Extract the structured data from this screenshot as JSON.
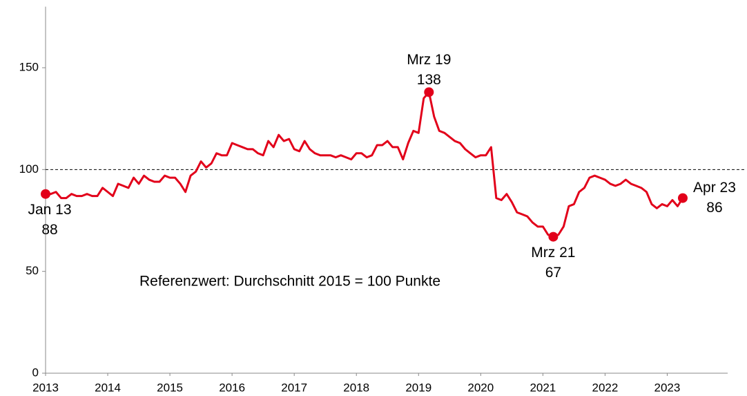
{
  "chart_data": {
    "type": "line",
    "note": "Referenzwert: Durchschnitt 2015 = 100 Punkte",
    "x": [
      2013,
      2013.083,
      2013.167,
      2013.25,
      2013.333,
      2013.417,
      2013.5,
      2013.583,
      2013.667,
      2013.75,
      2013.833,
      2013.917,
      2014,
      2014.083,
      2014.167,
      2014.25,
      2014.333,
      2014.417,
      2014.5,
      2014.583,
      2014.667,
      2014.75,
      2014.833,
      2014.917,
      2015,
      2015.083,
      2015.167,
      2015.25,
      2015.333,
      2015.417,
      2015.5,
      2015.583,
      2015.667,
      2015.75,
      2015.833,
      2015.917,
      2016,
      2016.083,
      2016.167,
      2016.25,
      2016.333,
      2016.417,
      2016.5,
      2016.583,
      2016.667,
      2016.75,
      2016.833,
      2016.917,
      2017,
      2017.083,
      2017.167,
      2017.25,
      2017.333,
      2017.417,
      2017.5,
      2017.583,
      2017.667,
      2017.75,
      2017.833,
      2017.917,
      2018,
      2018.083,
      2018.167,
      2018.25,
      2018.333,
      2018.417,
      2018.5,
      2018.583,
      2018.667,
      2018.75,
      2018.833,
      2018.917,
      2019,
      2019.083,
      2019.167,
      2019.25,
      2019.333,
      2019.417,
      2019.5,
      2019.583,
      2019.667,
      2019.75,
      2019.833,
      2019.917,
      2020,
      2020.083,
      2020.167,
      2020.25,
      2020.333,
      2020.417,
      2020.5,
      2020.583,
      2020.667,
      2020.75,
      2020.833,
      2020.917,
      2021,
      2021.083,
      2021.167,
      2021.25,
      2021.333,
      2021.417,
      2021.5,
      2021.583,
      2021.667,
      2021.75,
      2021.833,
      2021.917,
      2022,
      2022.083,
      2022.167,
      2022.25,
      2022.333,
      2022.417,
      2022.5,
      2022.583,
      2022.667,
      2022.75,
      2022.833,
      2022.917,
      2023,
      2023.083,
      2023.167,
      2023.25
    ],
    "series": [
      {
        "color": "#e2001a",
        "values": [
          88,
          88,
          89,
          86,
          86,
          88,
          87,
          87,
          88,
          87,
          87,
          91,
          89,
          87,
          93,
          92,
          91,
          96,
          93,
          97,
          95,
          94,
          94,
          97,
          96,
          96,
          93,
          89,
          97,
          99,
          104,
          101,
          103,
          108,
          107,
          107,
          113,
          112,
          111,
          110,
          110,
          108,
          107,
          114,
          111,
          117,
          114,
          115,
          110,
          109,
          114,
          110,
          108,
          107,
          107,
          107,
          106,
          107,
          106,
          105,
          108,
          108,
          106,
          107,
          112,
          112,
          114,
          111,
          111,
          105,
          113,
          119,
          118,
          135,
          138,
          126,
          119,
          118,
          116,
          114,
          113,
          110,
          108,
          106,
          107,
          107,
          111,
          86,
          85,
          88,
          84,
          79,
          78,
          77,
          74,
          72,
          72,
          68,
          67,
          68,
          72,
          82,
          83,
          89,
          91,
          96,
          97,
          96,
          95,
          93,
          92,
          93,
          95,
          93,
          92,
          91,
          89,
          83,
          81,
          83,
          82,
          85,
          82,
          86
        ]
      }
    ],
    "annotations": [
      {
        "text": "Jan 13",
        "x": 2013,
        "position": "below"
      },
      {
        "text": "Mrz 19",
        "x": 2019.167,
        "position": "above"
      },
      {
        "text": "Mrz 21",
        "x": 2021.167,
        "position": "below"
      },
      {
        "text": "Apr 23",
        "x": 2023.25,
        "position": "right"
      }
    ],
    "reference_line": {
      "value": 100,
      "style": "dashed"
    },
    "xlim": [
      2013,
      2024.25
    ],
    "xticks": [
      2013,
      2014,
      2015,
      2016,
      2017,
      2018,
      2019,
      2020,
      2021,
      2022,
      2023
    ],
    "ylim": [
      0,
      180
    ],
    "yticks": [
      0,
      50,
      100,
      150
    ]
  }
}
